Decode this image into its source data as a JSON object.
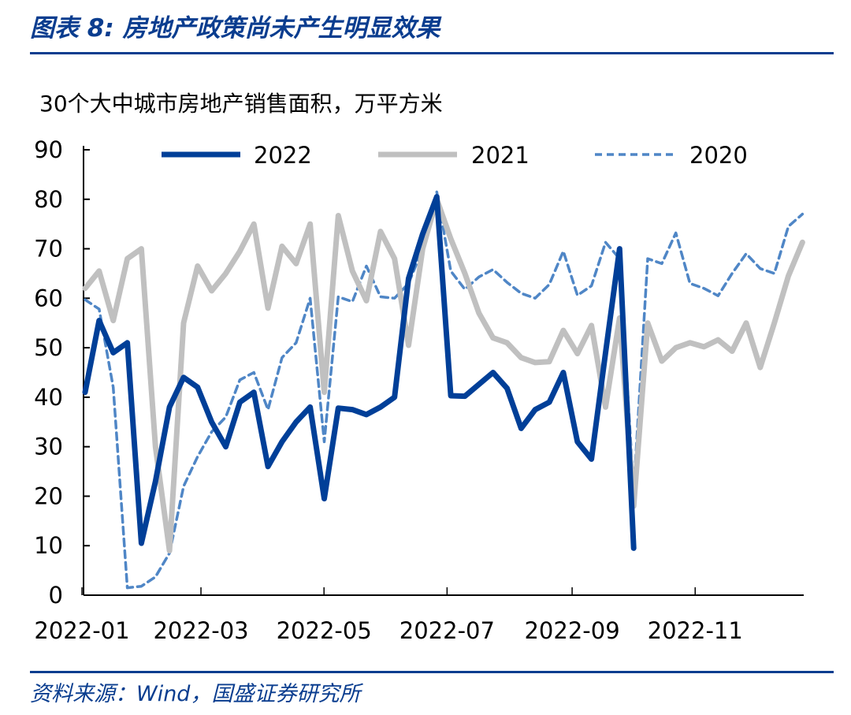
{
  "title": "图表 8:  房地产政策尚未产生明显效果",
  "source": "资料来源：Wind，国盛证券研究所",
  "chart_data": {
    "type": "line",
    "title": "30个大中城市房地产销售面积，万平方米",
    "xlabel": "",
    "ylabel": "",
    "ylim": [
      0,
      90
    ],
    "yticks": [
      0,
      10,
      20,
      30,
      40,
      50,
      60,
      70,
      80,
      90
    ],
    "xlim_days": [
      0,
      365
    ],
    "xticks": [
      {
        "label": "2022-01",
        "day": 0
      },
      {
        "label": "2022-03",
        "day": 59
      },
      {
        "label": "2022-05",
        "day": 120
      },
      {
        "label": "2022-07",
        "day": 181
      },
      {
        "label": "2022-09",
        "day": 243
      },
      {
        "label": "2022-11",
        "day": 304
      }
    ],
    "x_week_index_note": "weekly data, week index 0..51",
    "legend_position": "top",
    "series": [
      {
        "name": "2022",
        "color": "#003f98",
        "style": "solid-thick",
        "values": [
          41,
          55.5,
          49,
          51,
          10.5,
          23,
          38,
          44,
          42,
          35,
          30,
          39,
          41,
          26,
          31,
          35,
          38,
          19.5,
          37.8,
          37.5,
          36.5,
          38,
          40,
          64,
          73,
          80.5,
          40.3,
          40.2,
          42.6,
          45,
          41.8,
          33.7,
          37.5,
          39,
          45,
          31,
          27.5,
          49,
          70,
          9.5
        ]
      },
      {
        "name": "2021",
        "color": "#c0c0c0",
        "style": "solid-thick",
        "values": [
          62,
          65.5,
          55.5,
          68,
          70,
          30,
          9,
          55,
          66.5,
          61.5,
          65,
          69.5,
          75,
          58,
          70.5,
          67,
          75,
          41,
          76.7,
          65.5,
          59.5,
          73.5,
          68,
          50.5,
          70,
          80,
          72,
          65,
          57,
          52,
          51,
          48,
          47,
          47.2,
          53.5,
          48.8,
          54.5,
          38,
          56,
          18,
          55,
          47.3,
          50,
          51,
          50.2,
          51.6,
          49.3,
          55,
          46,
          55,
          64.5,
          71.3
        ]
      },
      {
        "name": "2020",
        "color": "#4f86c6",
        "style": "dashed",
        "values": [
          59.7,
          57.8,
          42,
          1.5,
          1.8,
          3.7,
          8.5,
          22,
          28,
          33,
          36,
          43.5,
          45,
          37.5,
          48,
          51,
          60,
          31,
          60.3,
          59.3,
          66.5,
          60.3,
          60,
          63,
          70,
          81.5,
          65.5,
          61.8,
          64.3,
          65.8,
          63.2,
          61,
          60,
          62.8,
          69.5,
          60.6,
          62.5,
          71.3,
          68,
          21,
          68,
          67,
          73.2,
          63,
          62,
          60.5,
          65,
          69,
          66,
          65,
          74.5,
          77
        ]
      }
    ]
  }
}
